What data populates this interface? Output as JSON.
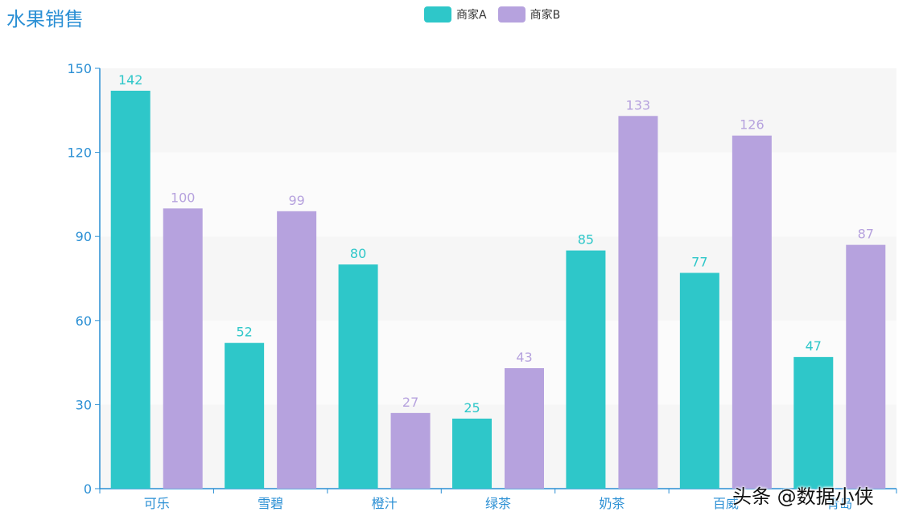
{
  "chart_data": {
    "type": "bar",
    "title": "水果销售",
    "categories": [
      "可乐",
      "雪碧",
      "橙汁",
      "绿茶",
      "奶茶",
      "百威",
      "青岛"
    ],
    "series": [
      {
        "name": "商家A",
        "color": "#2ec7c9",
        "values": [
          142,
          52,
          80,
          25,
          85,
          77,
          47
        ]
      },
      {
        "name": "商家B",
        "color": "#b6a2de",
        "values": [
          100,
          99,
          27,
          43,
          133,
          126,
          87
        ]
      }
    ],
    "ylim": [
      0,
      150
    ],
    "yticks": [
      0,
      30,
      60,
      90,
      120,
      150
    ],
    "xlabel": "",
    "ylabel": "",
    "legend": "top-center",
    "axis_color": "#2a8fd4"
  },
  "watermark": "头条 @数据小侠"
}
